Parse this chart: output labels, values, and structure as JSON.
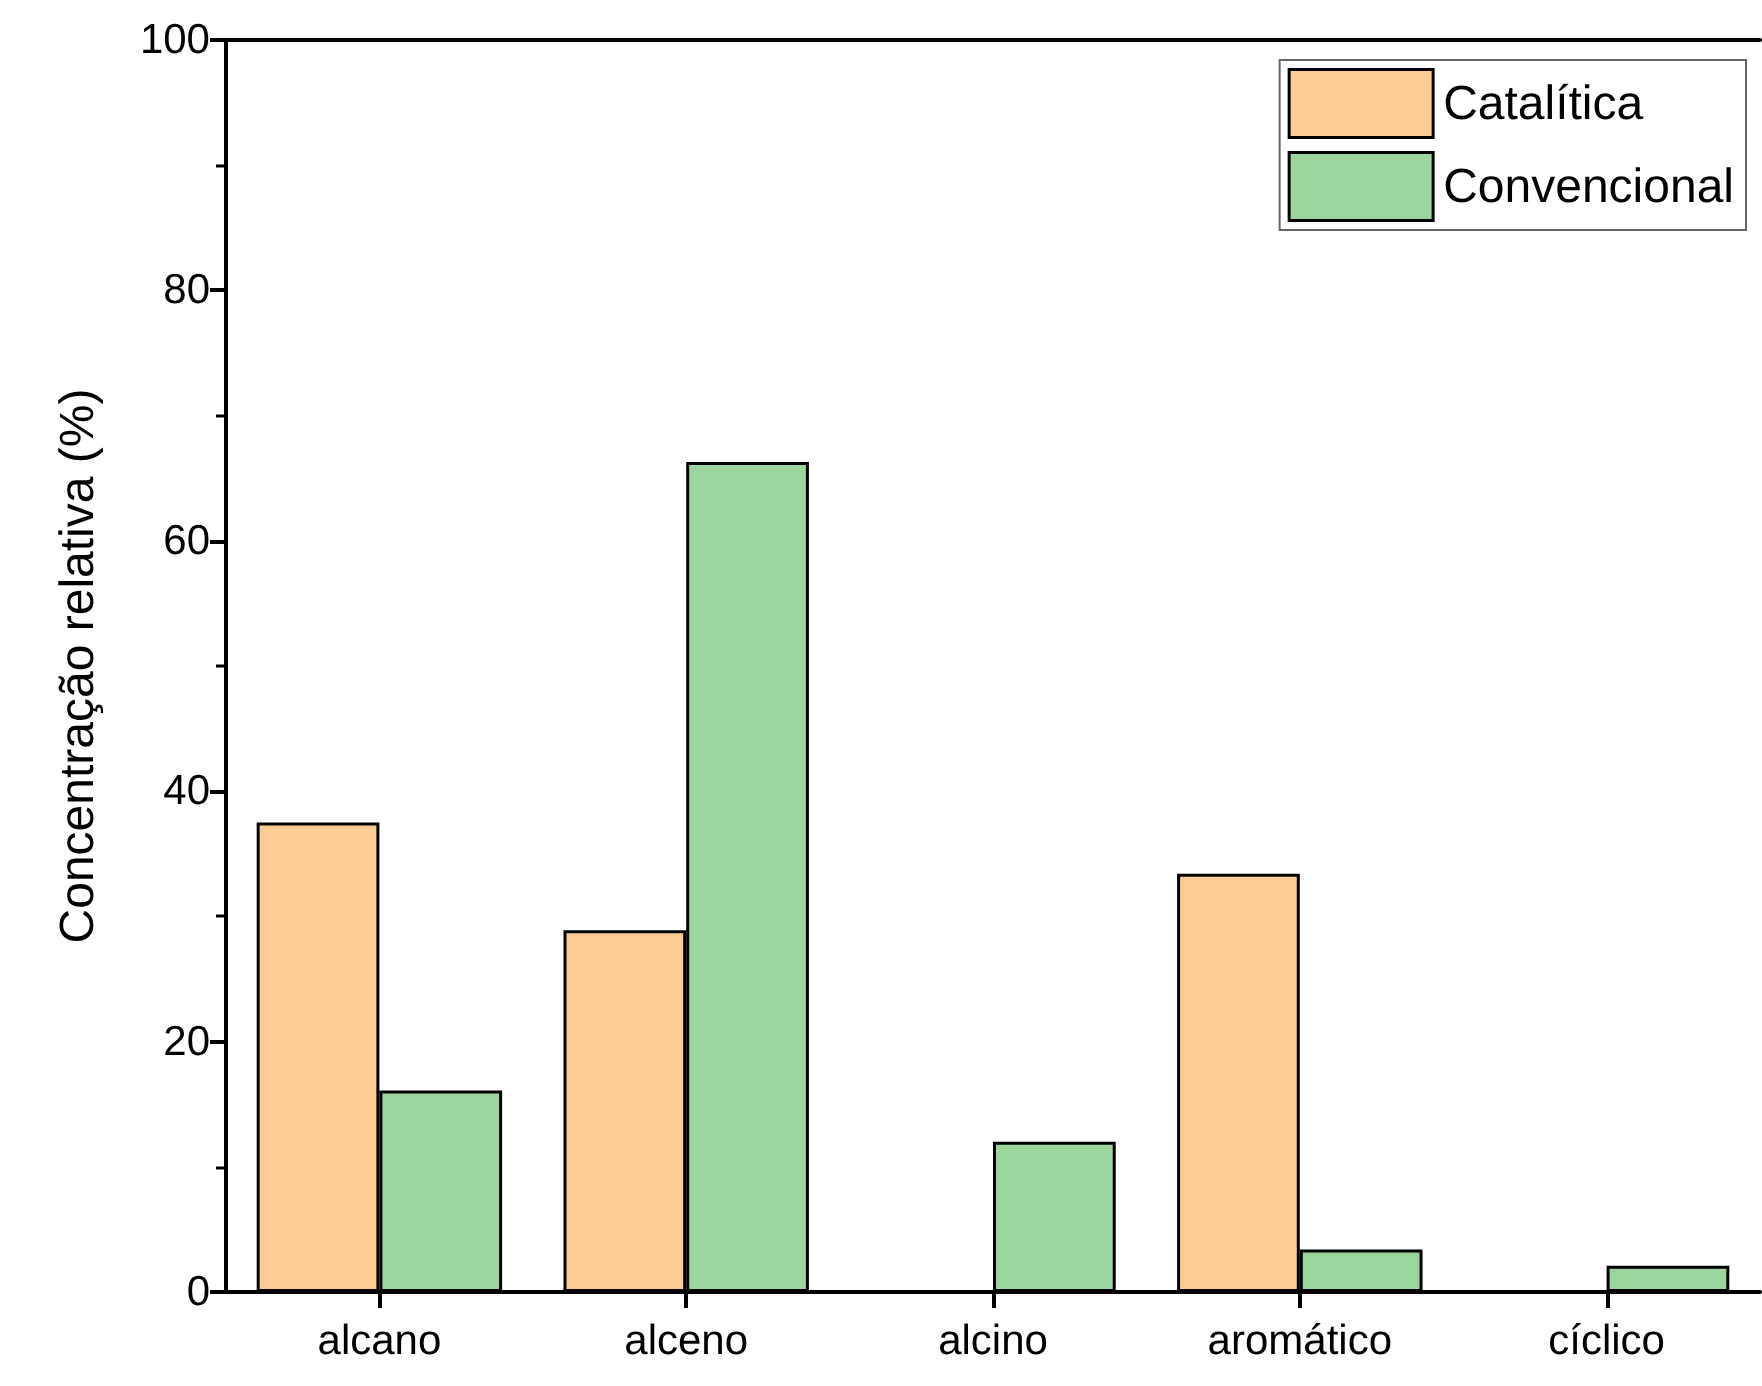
{
  "chart_data": {
    "type": "bar",
    "ylabel": "Concentração relativa (%)",
    "categories": [
      "alcano",
      "alceno",
      "alcino",
      "aromático",
      "cíclico"
    ],
    "series": [
      {
        "name": "Catalítica",
        "color": "#fdcc94",
        "values": [
          37.5,
          28.9,
          null,
          33.4,
          null
        ]
      },
      {
        "name": "Convencional",
        "color": "#9cd69c",
        "values": [
          16.1,
          66.3,
          12.0,
          3.4,
          2.1
        ]
      }
    ],
    "ylim": [
      0,
      100
    ],
    "yticks": [
      0,
      20,
      40,
      60,
      80,
      100
    ],
    "grid": false,
    "legend": "top right"
  }
}
